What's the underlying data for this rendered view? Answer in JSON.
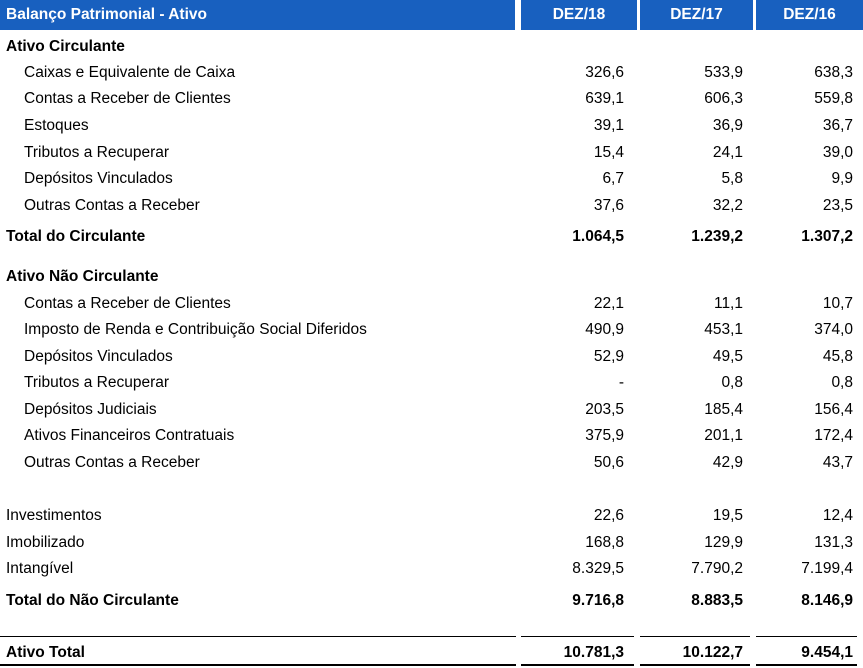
{
  "header": {
    "title": "Balanço Patrimonial - Ativo",
    "cols": [
      "DEZ/18",
      "DEZ/17",
      "DEZ/16"
    ]
  },
  "rows": [
    {
      "label": "Ativo Circulante",
      "values": [
        "",
        "",
        ""
      ]
    },
    {
      "label": "Caixas e Equivalente de Caixa",
      "values": [
        "326,6",
        "533,9",
        "638,3"
      ]
    },
    {
      "label": "Contas a Receber de Clientes",
      "values": [
        "639,1",
        "606,3",
        "559,8"
      ]
    },
    {
      "label": "Estoques",
      "values": [
        "39,1",
        "36,9",
        "36,7"
      ]
    },
    {
      "label": "Tributos a Recuperar",
      "values": [
        "15,4",
        "24,1",
        "39,0"
      ]
    },
    {
      "label": "Depósitos Vinculados",
      "values": [
        "6,7",
        "5,8",
        "9,9"
      ]
    },
    {
      "label": "Outras Contas a Receber",
      "values": [
        "37,6",
        "32,2",
        "23,5"
      ]
    },
    {
      "label": "Total do Circulante",
      "values": [
        "1.064,5",
        "1.239,2",
        "1.307,2"
      ]
    },
    {
      "label": "Ativo Não Circulante",
      "values": [
        "",
        "",
        ""
      ]
    },
    {
      "label": "Contas a Receber de Clientes",
      "values": [
        "22,1",
        "11,1",
        "10,7"
      ]
    },
    {
      "label": "Imposto de Renda e Contribuição Social Diferidos",
      "values": [
        "490,9",
        "453,1",
        "374,0"
      ]
    },
    {
      "label": "Depósitos Vinculados",
      "values": [
        "52,9",
        "49,5",
        "45,8"
      ]
    },
    {
      "label": "Tributos a Recuperar",
      "values": [
        "-",
        "0,8",
        "0,8"
      ]
    },
    {
      "label": "Depósitos Judiciais",
      "values": [
        "203,5",
        "185,4",
        "156,4"
      ]
    },
    {
      "label": "Ativos Financeiros Contratuais",
      "values": [
        "375,9",
        "201,1",
        "172,4"
      ]
    },
    {
      "label": "Outras Contas a Receber",
      "values": [
        "50,6",
        "42,9",
        "43,7"
      ]
    },
    {
      "label": "Investimentos",
      "values": [
        "22,6",
        "19,5",
        "12,4"
      ]
    },
    {
      "label": "Imobilizado",
      "values": [
        "168,8",
        "129,9",
        "131,3"
      ]
    },
    {
      "label": "Intangível",
      "values": [
        "8.329,5",
        "7.790,2",
        "7.199,4"
      ]
    },
    {
      "label": "Total do Não Circulante",
      "values": [
        "9.716,8",
        "8.883,5",
        "8.146,9"
      ]
    },
    {
      "label": "Ativo Total",
      "values": [
        "10.781,3",
        "10.122,7",
        "9.454,1"
      ]
    }
  ]
}
